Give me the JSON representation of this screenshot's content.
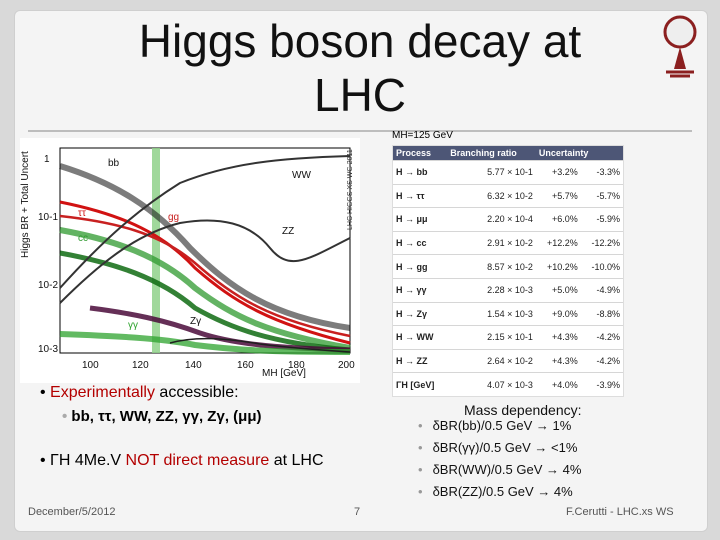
{
  "slide": {
    "title": "Higgs boson decay at LHC",
    "mass_label": "MH=125 GeV",
    "footer_left": "December/5/2012",
    "footer_center": "7",
    "footer_right": "F.Cerutti - LHC.xs WS"
  },
  "plot": {
    "ylabel": "Higgs BR + Total Uncert",
    "xlabel": "MH [GeV]",
    "watermark": "LHC HIGGS XS WG 2011",
    "ticks_x": [
      "100",
      "120",
      "140",
      "160",
      "180",
      "200"
    ],
    "ticks_y": [
      "1",
      "10-1",
      "10-2",
      "10-3"
    ],
    "labels": {
      "bb": "bb",
      "tt": "ττ",
      "cc": "cc",
      "gg": "gg",
      "ww": "WW",
      "zz": "ZZ",
      "yy": "γγ",
      "zy": "Zγ"
    }
  },
  "table": {
    "headers": [
      "Process",
      "Branching ratio",
      "Uncertainty"
    ],
    "rows": [
      [
        "H → bb",
        "5.77 × 10-1",
        "+3.2%",
        "-3.3%"
      ],
      [
        "H → ττ",
        "6.32 × 10-2",
        "+5.7%",
        "-5.7%"
      ],
      [
        "H → μμ",
        "2.20 × 10-4",
        "+6.0%",
        "-5.9%"
      ],
      [
        "H → cc",
        "2.91 × 10-2",
        "+12.2%",
        "-12.2%"
      ],
      [
        "H → gg",
        "8.57 × 10-2",
        "+10.2%",
        "-10.0%"
      ],
      [
        "H → γγ",
        "2.28 × 10-3",
        "+5.0%",
        "-4.9%"
      ],
      [
        "H → Zγ",
        "1.54 × 10-3",
        "+9.0%",
        "-8.8%"
      ],
      [
        "H → WW",
        "2.15 × 10-1",
        "+4.3%",
        "-4.2%"
      ],
      [
        "H → ZZ",
        "2.64 × 10-2",
        "+4.3%",
        "-4.2%"
      ],
      [
        "ΓH [GeV]",
        "4.07 × 10-3",
        "+4.0%",
        "-3.9%"
      ]
    ]
  },
  "bullets": {
    "b1_red": "Experimentally",
    "b1_text": " accessible:",
    "b2_text": "bb, ττ, WW, ZZ, γγ, Zγ, (μμ)",
    "b3_prefix": "ΓH  4Me.V ",
    "b3_red": "NOT direct measure",
    "b3_suffix": " at LHC"
  },
  "mass_dependency": {
    "title": "Mass dependency:",
    "items": [
      "δBR(bb)/0.5 GeV   → 1%",
      "δBR(γγ)/0.5 GeV    → <1%",
      "δBR(WW)/0.5 GeV  → 4%",
      "δBR(ZZ)/0.5 GeV   → 4%"
    ]
  },
  "colors": {
    "band": "#8fd18a",
    "bb": "#111111",
    "tt": "#d11212",
    "cc": "#2f9a2f",
    "gg": "#c82020",
    "ww": "#1f1f1f",
    "zz": "#1f1f1f",
    "yy": "#2ea32e",
    "zy": "#1f1f1f",
    "darkgreen": "#0f6b12",
    "purple": "#4a0a3a"
  }
}
